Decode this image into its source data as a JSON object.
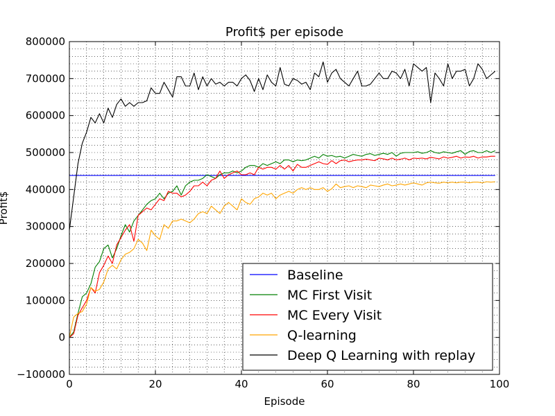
{
  "chart_data": {
    "type": "line",
    "title": "Profit$ per episode",
    "xlabel": "Episode",
    "ylabel": "Profit$",
    "xlim": [
      0,
      100
    ],
    "ylim": [
      -100000,
      800000
    ],
    "xticks": [
      0,
      20,
      40,
      60,
      80,
      100
    ],
    "yticks": [
      -100000,
      0,
      100000,
      200000,
      300000,
      400000,
      500000,
      600000,
      700000,
      800000
    ],
    "grid": true,
    "legend_position": "lower-right",
    "series": [
      {
        "name": "Baseline",
        "color": "#0000ff",
        "x": [
          0,
          99
        ],
        "y": [
          438000,
          438000
        ]
      },
      {
        "name": "MC First Visit",
        "color": "#008000",
        "y": [
          0,
          15000,
          65000,
          110000,
          120000,
          145000,
          190000,
          205000,
          240000,
          250000,
          215000,
          240000,
          275000,
          305000,
          285000,
          315000,
          330000,
          345000,
          360000,
          370000,
          375000,
          390000,
          375000,
          390000,
          395000,
          410000,
          385000,
          410000,
          420000,
          425000,
          425000,
          430000,
          440000,
          435000,
          430000,
          440000,
          445000,
          445000,
          450000,
          445000,
          450000,
          460000,
          465000,
          465000,
          460000,
          470000,
          465000,
          470000,
          475000,
          470000,
          480000,
          480000,
          475000,
          480000,
          478000,
          480000,
          485000,
          490000,
          485000,
          495000,
          490000,
          492000,
          488000,
          490000,
          485000,
          490000,
          495000,
          492000,
          490000,
          495000,
          497000,
          492000,
          495000,
          498000,
          495000,
          500000,
          490000,
          498000,
          500000,
          500000,
          500000,
          502000,
          498000,
          500000,
          505000,
          500000,
          498000,
          502000,
          500000,
          498000,
          502000,
          505000,
          495000,
          503000,
          505000,
          500000,
          500000,
          505000,
          500000,
          505000
        ]
      },
      {
        "name": "MC Every Visit",
        "color": "#ff0000",
        "y": [
          0,
          10000,
          60000,
          80000,
          100000,
          135000,
          120000,
          175000,
          195000,
          220000,
          200000,
          250000,
          270000,
          290000,
          305000,
          260000,
          330000,
          340000,
          350000,
          345000,
          360000,
          375000,
          370000,
          395000,
          390000,
          390000,
          380000,
          385000,
          395000,
          410000,
          410000,
          420000,
          410000,
          425000,
          430000,
          450000,
          430000,
          440000,
          445000,
          450000,
          440000,
          440000,
          445000,
          440000,
          460000,
          455000,
          460000,
          460000,
          455000,
          465000,
          455000,
          465000,
          450000,
          468000,
          460000,
          460000,
          465000,
          470000,
          475000,
          470000,
          468000,
          478000,
          470000,
          478000,
          480000,
          475000,
          478000,
          480000,
          480000,
          482000,
          480000,
          478000,
          485000,
          483000,
          480000,
          485000,
          480000,
          482000,
          485000,
          480000,
          485000,
          484000,
          485000,
          483000,
          487000,
          485000,
          483000,
          488000,
          485000,
          487000,
          490000,
          485000,
          488000,
          487000,
          490000,
          485000,
          488000,
          488000,
          490000,
          490000
        ]
      },
      {
        "name": "Q-learning",
        "color": "#ffa500",
        "y": [
          0,
          55000,
          65000,
          70000,
          90000,
          135000,
          125000,
          130000,
          150000,
          185000,
          195000,
          185000,
          210000,
          225000,
          230000,
          240000,
          265000,
          255000,
          235000,
          290000,
          275000,
          265000,
          305000,
          295000,
          315000,
          315000,
          320000,
          315000,
          310000,
          320000,
          335000,
          340000,
          335000,
          355000,
          345000,
          335000,
          355000,
          365000,
          355000,
          345000,
          375000,
          365000,
          360000,
          375000,
          380000,
          390000,
          385000,
          390000,
          375000,
          385000,
          390000,
          395000,
          390000,
          400000,
          405000,
          400000,
          405000,
          400000,
          400000,
          405000,
          395000,
          402000,
          415000,
          405000,
          408000,
          410000,
          405000,
          410000,
          408000,
          405000,
          412000,
          410000,
          408000,
          412000,
          415000,
          410000,
          412000,
          415000,
          412000,
          415000,
          418000,
          415000,
          412000,
          418000,
          420000,
          418000,
          417000,
          420000,
          418000,
          420000,
          418000,
          420000,
          420000,
          418000,
          420000,
          420000,
          418000,
          421000,
          420000,
          421000
        ]
      },
      {
        "name": "Deep Q Learning with replay",
        "color": "#000000",
        "y": [
          290000,
          380000,
          470000,
          525000,
          555000,
          595000,
          580000,
          605000,
          580000,
          620000,
          595000,
          630000,
          645000,
          625000,
          635000,
          625000,
          635000,
          635000,
          640000,
          675000,
          660000,
          660000,
          690000,
          670000,
          650000,
          705000,
          705000,
          680000,
          680000,
          715000,
          670000,
          705000,
          680000,
          700000,
          685000,
          690000,
          680000,
          690000,
          690000,
          680000,
          700000,
          710000,
          695000,
          665000,
          700000,
          670000,
          710000,
          690000,
          680000,
          730000,
          685000,
          680000,
          700000,
          695000,
          685000,
          690000,
          670000,
          715000,
          705000,
          745000,
          690000,
          715000,
          725000,
          700000,
          690000,
          680000,
          700000,
          720000,
          680000,
          680000,
          685000,
          700000,
          715000,
          700000,
          700000,
          720000,
          715000,
          700000,
          725000,
          680000,
          740000,
          730000,
          720000,
          730000,
          635000,
          715000,
          700000,
          680000,
          740000,
          700000,
          720000,
          720000,
          725000,
          680000,
          700000,
          740000,
          725000,
          700000,
          710000,
          720000
        ]
      }
    ]
  }
}
